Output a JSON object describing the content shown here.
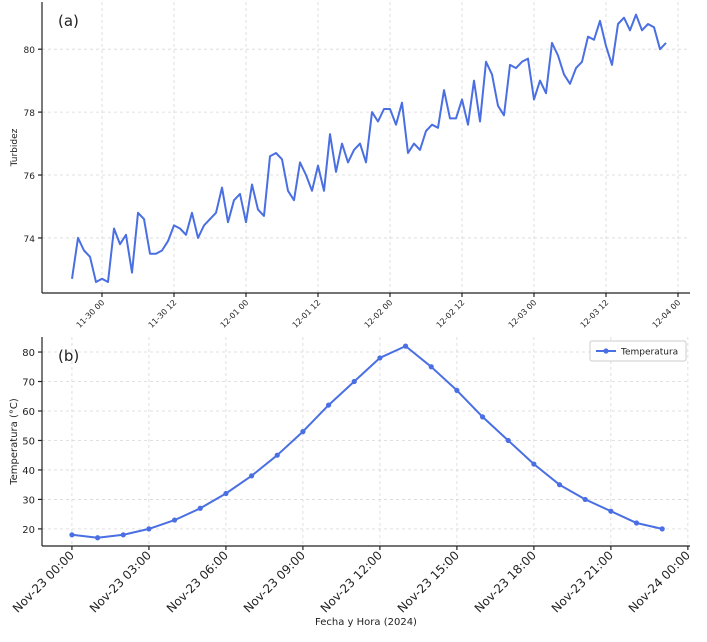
{
  "chart_data": [
    {
      "type": "line",
      "ylabel": "Turbidez",
      "annotation": "(a)",
      "x": [
        "11-29 19",
        "11-29 20",
        "11-29 21",
        "11-29 22",
        "11-29 23",
        "11-30 00",
        "11-30 01",
        "11-30 02",
        "11-30 03",
        "11-30 04",
        "11-30 05",
        "11-30 06",
        "11-30 07",
        "11-30 08",
        "11-30 09",
        "11-30 10",
        "11-30 11",
        "11-30 12",
        "11-30 13",
        "11-30 14",
        "11-30 15",
        "11-30 16",
        "11-30 17",
        "11-30 18",
        "11-30 19",
        "11-30 20",
        "11-30 21",
        "11-30 22",
        "11-30 23",
        "12-01 00",
        "12-01 01",
        "12-01 02",
        "12-01 03",
        "12-01 04",
        "12-01 05",
        "12-01 06",
        "12-01 07",
        "12-01 08",
        "12-01 09",
        "12-01 10",
        "12-01 11",
        "12-01 12",
        "12-01 13",
        "12-01 14",
        "12-01 15",
        "12-01 16",
        "12-01 17",
        "12-01 18",
        "12-01 19",
        "12-01 20",
        "12-01 21",
        "12-01 22",
        "12-01 23",
        "12-02 00",
        "12-02 01",
        "12-02 02",
        "12-02 03",
        "12-02 04",
        "12-02 05",
        "12-02 06",
        "12-02 07",
        "12-02 08",
        "12-02 09",
        "12-02 10",
        "12-02 11",
        "12-02 12",
        "12-02 13",
        "12-02 14",
        "12-02 15",
        "12-02 16",
        "12-02 17",
        "12-02 18",
        "12-02 19",
        "12-02 20",
        "12-02 21",
        "12-02 22",
        "12-02 23",
        "12-03 00",
        "12-03 01",
        "12-03 02",
        "12-03 03",
        "12-03 04",
        "12-03 05",
        "12-03 06",
        "12-03 07",
        "12-03 08",
        "12-03 09",
        "12-03 10",
        "12-03 11",
        "12-03 12",
        "12-03 13",
        "12-03 14",
        "12-03 15",
        "12-03 16",
        "12-03 17",
        "12-03 18",
        "12-03 19",
        "12-03 20",
        "12-03 21",
        "12-03 22"
      ],
      "series": [
        {
          "name": "Turbidez",
          "color": "#4a6fe3",
          "values": [
            72.7,
            74.0,
            73.6,
            73.4,
            72.6,
            72.7,
            72.6,
            74.3,
            73.8,
            74.1,
            72.9,
            74.8,
            74.6,
            73.5,
            73.5,
            73.6,
            73.9,
            74.4,
            74.3,
            74.1,
            74.8,
            74.0,
            74.4,
            74.6,
            74.8,
            75.6,
            74.5,
            75.2,
            75.4,
            74.5,
            75.7,
            74.9,
            74.7,
            76.6,
            76.7,
            76.5,
            75.5,
            75.2,
            76.4,
            76.0,
            75.5,
            76.3,
            75.5,
            77.3,
            76.1,
            77.0,
            76.4,
            76.8,
            77.0,
            76.4,
            78.0,
            77.7,
            78.1,
            78.1,
            77.6,
            78.3,
            76.7,
            77.0,
            76.8,
            77.4,
            77.6,
            77.5,
            78.7,
            77.8,
            77.8,
            78.4,
            77.6,
            79.0,
            77.7,
            79.6,
            79.2,
            78.2,
            77.9,
            79.5,
            79.4,
            79.6,
            79.7,
            78.4,
            79.0,
            78.6,
            80.2,
            79.8,
            79.2,
            78.9,
            79.4,
            79.6,
            80.4,
            80.3,
            80.9,
            80.1,
            79.5,
            80.8,
            81.0,
            80.6,
            81.1,
            80.6,
            80.8,
            80.7,
            80.0,
            80.2
          ]
        }
      ],
      "xlim": [
        "11-29 14",
        "12-04 02"
      ],
      "xticks": [
        "11-30 00",
        "11-30 12",
        "12-01 00",
        "12-01 12",
        "12-02 00",
        "12-02 12",
        "12-03 00",
        "12-03 12",
        "12-04 00"
      ],
      "ylim": [
        72.25,
        81.5
      ],
      "yticks": [
        74,
        76,
        78,
        80
      ],
      "grid": true
    },
    {
      "type": "line",
      "xlabel": "Fecha y Hora (2024)",
      "ylabel": "Temperatura (°C)",
      "annotation": "(b)",
      "markers": true,
      "legend": "upper right",
      "x": [
        "Nov-23 00:00",
        "Nov-23 01:00",
        "Nov-23 02:00",
        "Nov-23 03:00",
        "Nov-23 04:00",
        "Nov-23 05:00",
        "Nov-23 06:00",
        "Nov-23 07:00",
        "Nov-23 08:00",
        "Nov-23 09:00",
        "Nov-23 10:00",
        "Nov-23 11:00",
        "Nov-23 12:00",
        "Nov-23 13:00",
        "Nov-23 14:00",
        "Nov-23 15:00",
        "Nov-23 16:00",
        "Nov-23 17:00",
        "Nov-23 18:00",
        "Nov-23 19:00",
        "Nov-23 20:00",
        "Nov-23 21:00",
        "Nov-23 22:00",
        "Nov-23 23:00"
      ],
      "series": [
        {
          "name": "Temperatura",
          "color": "#4a6fe3",
          "values": [
            18,
            17,
            18,
            20,
            23,
            27,
            32,
            38,
            45,
            53,
            62,
            70,
            78,
            82,
            75,
            67,
            58,
            50,
            42,
            35,
            30,
            26,
            22,
            20
          ]
        }
      ],
      "xlim": [
        "Nov-22 22:50",
        "Nov-24 00:05"
      ],
      "xticks": [
        "Nov-23 00:00",
        "Nov-23 03:00",
        "Nov-23 06:00",
        "Nov-23 09:00",
        "Nov-23 12:00",
        "Nov-23 15:00",
        "Nov-23 18:00",
        "Nov-23 21:00",
        "Nov-24 00:00"
      ],
      "ylim": [
        14.2,
        85.1
      ],
      "yticks": [
        20,
        30,
        40,
        50,
        60,
        70,
        80
      ],
      "grid": true
    }
  ]
}
